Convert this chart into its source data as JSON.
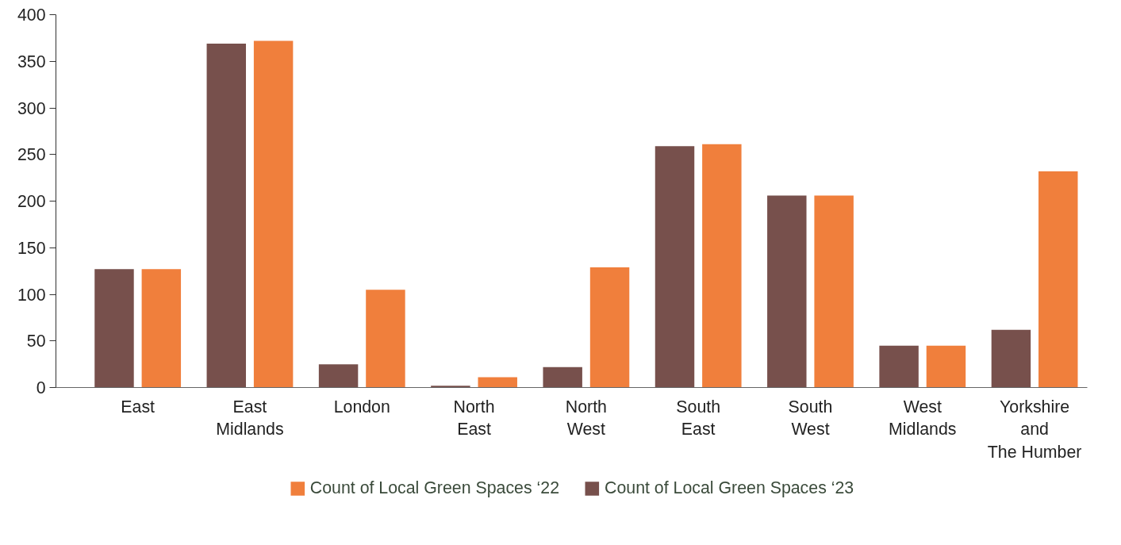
{
  "chart_data": {
    "type": "bar",
    "categories": [
      "East",
      "East\nMidlands",
      "London",
      "North\nEast",
      "North\nWest",
      "South\nEast",
      "South\nWest",
      "West\nMidlands",
      "Yorkshire\nand\nThe Humber"
    ],
    "series": [
      {
        "name": "Count of Local Green Spaces ‘22",
        "color": "#f07f3c",
        "values": [
          127,
          372,
          105,
          11,
          129,
          261,
          206,
          45,
          232
        ]
      },
      {
        "name": "Count of Local Green Spaces ‘23",
        "color": "#77504c",
        "values": [
          127,
          369,
          25,
          2,
          22,
          259,
          206,
          45,
          62
        ]
      }
    ],
    "ylim": [
      0,
      400
    ],
    "yticks": [
      0,
      50,
      100,
      150,
      200,
      250,
      300,
      350,
      400
    ],
    "grid": false,
    "legend": "bottom"
  }
}
